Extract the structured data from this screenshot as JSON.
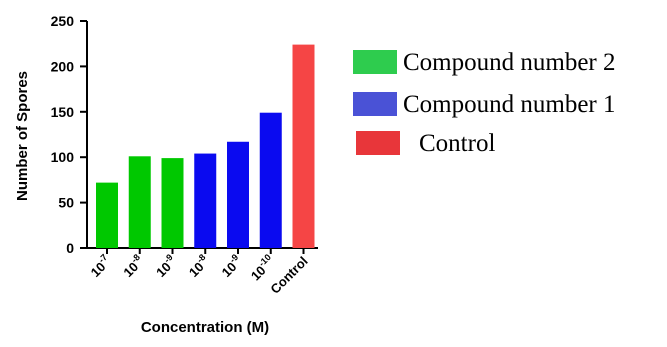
{
  "chart_data": {
    "type": "bar",
    "xlabel": "Concentration (M)",
    "ylabel": "Number of Spores",
    "ylim": [
      0,
      250
    ],
    "yticks": [
      0,
      50,
      100,
      150,
      200,
      250
    ],
    "categories": [
      {
        "base": "10",
        "exp": "-7"
      },
      {
        "base": "10",
        "exp": "-8"
      },
      {
        "base": "10",
        "exp": "-9"
      },
      {
        "base": "10",
        "exp": "-8"
      },
      {
        "base": "10",
        "exp": "-9"
      },
      {
        "base": "10",
        "exp": "-10"
      },
      {
        "base": "Control",
        "exp": ""
      }
    ],
    "values": [
      72,
      101,
      99,
      104,
      117,
      149,
      224
    ],
    "bar_colors": [
      "#00c800",
      "#00c800",
      "#00c800",
      "#0a0af0",
      "#0a0af0",
      "#0a0af0",
      "#f54545"
    ],
    "legend": [
      {
        "label": "Compound number 2",
        "color": "#2ecc4e"
      },
      {
        "label": "Compound number 1",
        "color": "#4a52d6"
      },
      {
        "label": "Control",
        "color": "#e8363a"
      }
    ],
    "grid": false,
    "legend_position": "right"
  }
}
